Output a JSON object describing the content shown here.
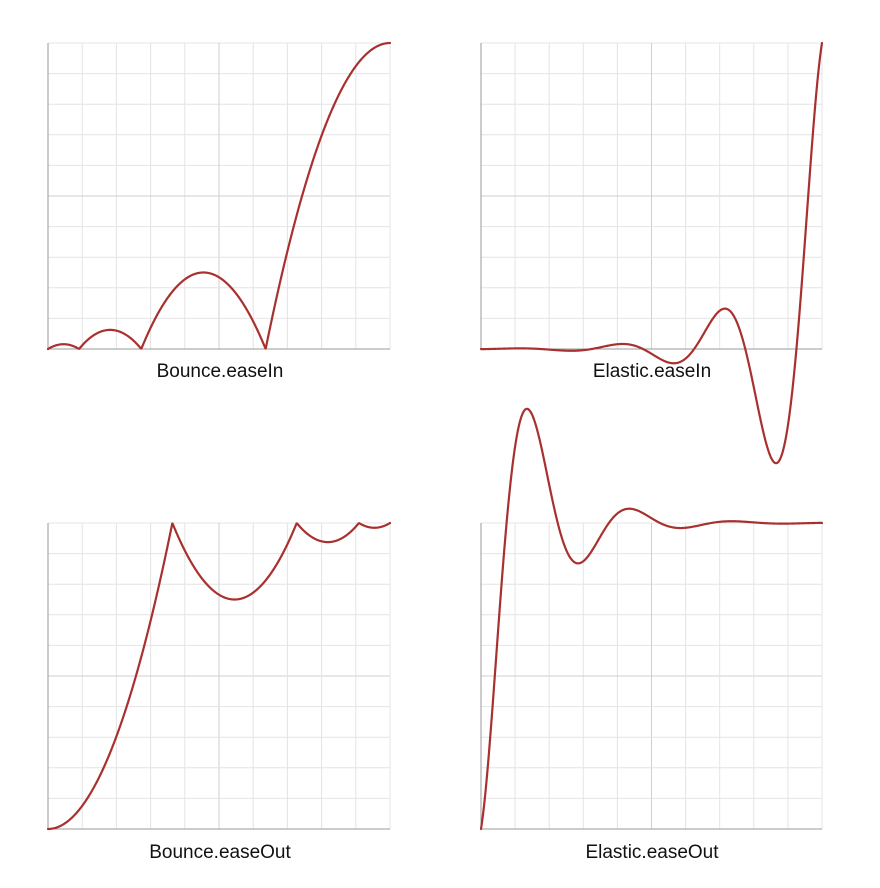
{
  "colors": {
    "curve": "#a8312f",
    "grid": "#e4e4e4",
    "grid_major": "#cfcfcf",
    "axis": "#9a9a9a"
  },
  "chart_data": [
    {
      "type": "line",
      "title": "Bounce.easeIn",
      "function": "bounce-in",
      "xlim": [
        0,
        1
      ],
      "ylim": [
        0,
        1
      ],
      "grid": true,
      "x": [
        0,
        0.0455,
        0.0909,
        0.1818,
        0.2727,
        0.3636,
        0.4545,
        0.5455,
        0.6364,
        0.7273,
        0.8182,
        0.9091,
        1
      ],
      "y": [
        0,
        0.0156,
        0,
        0.0625,
        0,
        0.1406,
        0.25,
        0.1406,
        0,
        0.4375,
        0.75,
        0.9375,
        1
      ]
    },
    {
      "type": "line",
      "title": "Elastic.easeIn",
      "function": "elastic-in",
      "xlim": [
        0,
        1
      ],
      "ylim": [
        -0.37,
        1
      ],
      "grid": true,
      "x": [
        0,
        0.2,
        0.3,
        0.4,
        0.475,
        0.55,
        0.6,
        0.7,
        0.775,
        0.85,
        0.9,
        0.925,
        1
      ],
      "y": [
        0,
        0.002,
        -0.002,
        0.004,
        0.016,
        -0.031,
        0.016,
        0.125,
        0.125,
        -0.25,
        -0.25,
        0.125,
        1
      ]
    },
    {
      "type": "line",
      "title": "Bounce.easeOut",
      "function": "bounce-out",
      "xlim": [
        0,
        1
      ],
      "ylim": [
        0,
        1
      ],
      "grid": true,
      "x": [
        0,
        0.0909,
        0.1818,
        0.2727,
        0.3636,
        0.5455,
        0.7273,
        0.8182,
        0.9091,
        0.9545,
        1
      ],
      "y": [
        0,
        0.0625,
        0.25,
        0.5625,
        1,
        0.75,
        1,
        0.9375,
        1,
        0.9844,
        1
      ]
    },
    {
      "type": "line",
      "title": "Elastic.easeOut",
      "function": "elastic-out",
      "xlim": [
        0,
        1
      ],
      "ylim": [
        0,
        1.37
      ],
      "grid": true,
      "x": [
        0,
        0.05,
        0.075,
        0.1,
        0.15,
        0.225,
        0.3,
        0.4,
        0.45,
        0.525,
        0.6,
        0.7,
        0.8,
        1
      ],
      "y": [
        0,
        0.7,
        1.25,
        1.37,
        1.25,
        0.875,
        1.031,
        0.984,
        1.0,
        1.0,
        0.996,
        1.002,
        1.0,
        1.0
      ]
    }
  ]
}
